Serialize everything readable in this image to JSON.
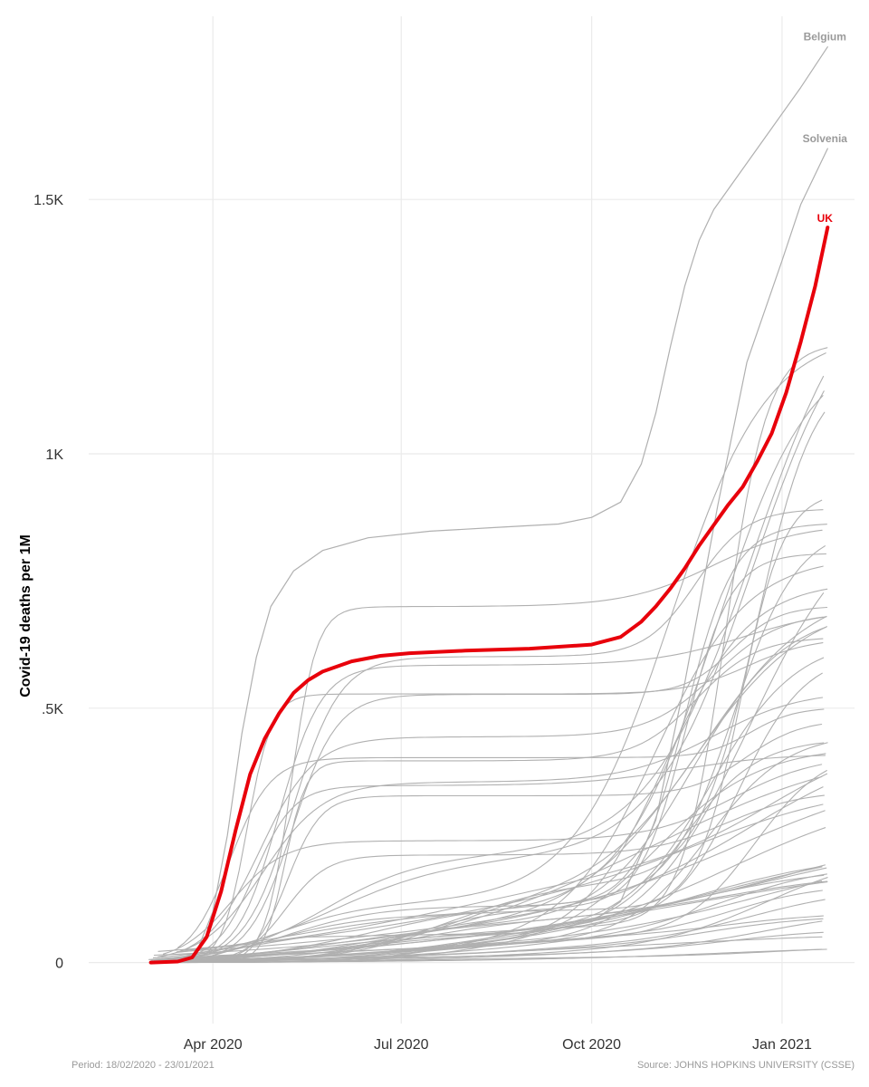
{
  "chart_data": {
    "type": "line",
    "title": "",
    "ylabel": "Covid-19 deaths per 1M",
    "xlabel": "",
    "x_range": [
      "2020-02-01",
      "2021-02-05"
    ],
    "ylim": [
      -120,
      1860
    ],
    "grid": true,
    "legend": "none",
    "highlight_color": "#e8000b",
    "background_color": "#b0b0b0",
    "x_ticks": [
      {
        "date": "2020-04-01",
        "label": "Apr 2020"
      },
      {
        "date": "2020-07-01",
        "label": "Jul 2020"
      },
      {
        "date": "2020-10-01",
        "label": "Oct 2020"
      },
      {
        "date": "2021-01-01",
        "label": "Jan 2021"
      }
    ],
    "y_ticks": [
      {
        "value": 0,
        "label": "0"
      },
      {
        "value": 500,
        "label": ".5K"
      },
      {
        "value": 1000,
        "label": "1K"
      },
      {
        "value": 1500,
        "label": "1.5K"
      }
    ],
    "highlight_series": {
      "name": "UK",
      "color": "#e8000b",
      "points": [
        [
          "2020-03-02",
          0
        ],
        [
          "2020-03-15",
          2
        ],
        [
          "2020-03-22",
          10
        ],
        [
          "2020-03-29",
          50
        ],
        [
          "2020-04-05",
          140
        ],
        [
          "2020-04-12",
          260
        ],
        [
          "2020-04-19",
          370
        ],
        [
          "2020-04-26",
          440
        ],
        [
          "2020-05-03",
          490
        ],
        [
          "2020-05-10",
          530
        ],
        [
          "2020-05-17",
          555
        ],
        [
          "2020-05-24",
          572
        ],
        [
          "2020-06-07",
          592
        ],
        [
          "2020-06-21",
          603
        ],
        [
          "2020-07-05",
          608
        ],
        [
          "2020-08-01",
          613
        ],
        [
          "2020-09-01",
          617
        ],
        [
          "2020-10-01",
          625
        ],
        [
          "2020-10-15",
          640
        ],
        [
          "2020-10-25",
          670
        ],
        [
          "2020-11-01",
          700
        ],
        [
          "2020-11-08",
          735
        ],
        [
          "2020-11-15",
          775
        ],
        [
          "2020-11-22",
          820
        ],
        [
          "2020-11-29",
          860
        ],
        [
          "2020-12-06",
          900
        ],
        [
          "2020-12-13",
          935
        ],
        [
          "2020-12-20",
          985
        ],
        [
          "2020-12-27",
          1040
        ],
        [
          "2021-01-03",
          1120
        ],
        [
          "2021-01-10",
          1220
        ],
        [
          "2021-01-17",
          1330
        ],
        [
          "2021-01-23",
          1445
        ]
      ]
    },
    "labeled_series": [
      {
        "name": "Belgium",
        "color": "#b0b0b0",
        "points": [
          [
            "2020-03-10",
            0
          ],
          [
            "2020-03-24",
            20
          ],
          [
            "2020-04-01",
            100
          ],
          [
            "2020-04-08",
            250
          ],
          [
            "2020-04-15",
            450
          ],
          [
            "2020-04-22",
            600
          ],
          [
            "2020-04-29",
            700
          ],
          [
            "2020-05-10",
            770
          ],
          [
            "2020-05-24",
            810
          ],
          [
            "2020-06-15",
            835
          ],
          [
            "2020-07-15",
            848
          ],
          [
            "2020-08-15",
            855
          ],
          [
            "2020-09-15",
            862
          ],
          [
            "2020-10-01",
            875
          ],
          [
            "2020-10-15",
            905
          ],
          [
            "2020-10-25",
            980
          ],
          [
            "2020-11-01",
            1080
          ],
          [
            "2020-11-08",
            1210
          ],
          [
            "2020-11-15",
            1330
          ],
          [
            "2020-11-22",
            1420
          ],
          [
            "2020-11-29",
            1480
          ],
          [
            "2020-12-13",
            1560
          ],
          [
            "2020-12-27",
            1640
          ],
          [
            "2021-01-10",
            1720
          ],
          [
            "2021-01-23",
            1800
          ]
        ]
      },
      {
        "name": "Solvenia",
        "color": "#b0b0b0",
        "points": [
          [
            "2020-03-20",
            0
          ],
          [
            "2020-04-15",
            30
          ],
          [
            "2020-05-15",
            50
          ],
          [
            "2020-07-01",
            54
          ],
          [
            "2020-09-01",
            58
          ],
          [
            "2020-10-01",
            80
          ],
          [
            "2020-10-15",
            120
          ],
          [
            "2020-11-01",
            280
          ],
          [
            "2020-11-15",
            550
          ],
          [
            "2020-12-01",
            900
          ],
          [
            "2020-12-15",
            1180
          ],
          [
            "2021-01-01",
            1380
          ],
          [
            "2021-01-10",
            1490
          ],
          [
            "2021-01-23",
            1600
          ]
        ]
      }
    ],
    "background_series_count": 60
  },
  "captions": {
    "period": "Period: 18/02/2020 - 23/01/2021",
    "source": "Source:  JOHNS HOPKINS UNIVERSITY (CSSE)"
  }
}
